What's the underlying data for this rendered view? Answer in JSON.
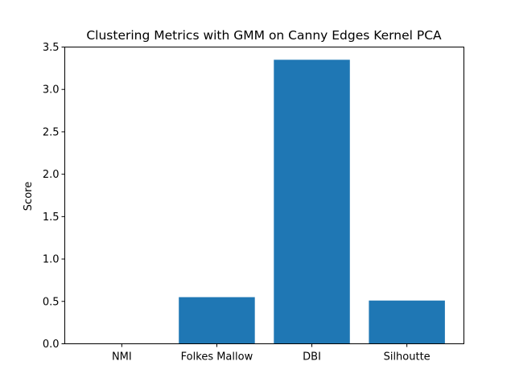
{
  "chart_data": {
    "type": "bar",
    "title": "Clustering Metrics with GMM on Canny Edges Kernel PCA",
    "xlabel": "",
    "ylabel": "Score",
    "categories": [
      "NMI",
      "Folkes Mallow",
      "DBI",
      "Silhoutte"
    ],
    "values": [
      0.0,
      0.55,
      3.35,
      0.51
    ],
    "ylim": [
      0,
      3.5
    ],
    "yticks": [
      "0.0",
      "0.5",
      "1.0",
      "1.5",
      "2.0",
      "2.5",
      "3.0",
      "3.5"
    ],
    "grid": false,
    "legend": "none",
    "bar_color": "#1f77b4"
  }
}
